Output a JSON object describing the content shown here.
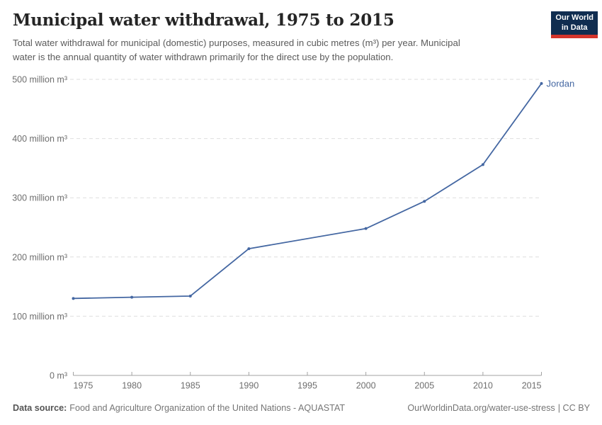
{
  "header": {
    "title": "Municipal water withdrawal, 1975 to 2015",
    "subtitle": "Total water withdrawal for municipal (domestic) purposes, measured in cubic metres (m³) per year. Municipal\nwater is the annual quantity of water withdrawn primarily for the direct use by the population.",
    "logo": {
      "line1": "Our World",
      "line2": "in Data",
      "bg_color": "#102d50",
      "accent_color": "#d4352c"
    }
  },
  "chart_data": {
    "type": "line",
    "title": "Municipal water withdrawal, 1975 to 2015",
    "xlabel": "",
    "ylabel": "",
    "xlim": [
      1975,
      2015
    ],
    "ylim": [
      0,
      500
    ],
    "grid": "horizontal-dashed",
    "legend_position": "end-of-line-label",
    "x_ticks": [
      1975,
      1980,
      1985,
      1990,
      1995,
      2000,
      2005,
      2010,
      2015
    ],
    "y_ticks": [
      {
        "value": 0,
        "label": "0 m³"
      },
      {
        "value": 100,
        "label": "100 million m³"
      },
      {
        "value": 200,
        "label": "200 million m³"
      },
      {
        "value": 300,
        "label": "300 million m³"
      },
      {
        "value": 400,
        "label": "400 million m³"
      },
      {
        "value": 500,
        "label": "500 million m³"
      }
    ],
    "series": [
      {
        "name": "Jordan",
        "color": "#4467a2",
        "unit": "m³",
        "x": [
          1975,
          1980,
          1985,
          1990,
          2000,
          2005,
          2010,
          2015
        ],
        "values": [
          130,
          132,
          134,
          214,
          248,
          294,
          356,
          493
        ]
      }
    ]
  },
  "footer": {
    "datasource_label": "Data source:",
    "datasource_value": "Food and Agriculture Organization of the United Nations - AQUASTAT",
    "url": "OurWorldinData.org/water-use-stress",
    "license": "| CC BY"
  }
}
